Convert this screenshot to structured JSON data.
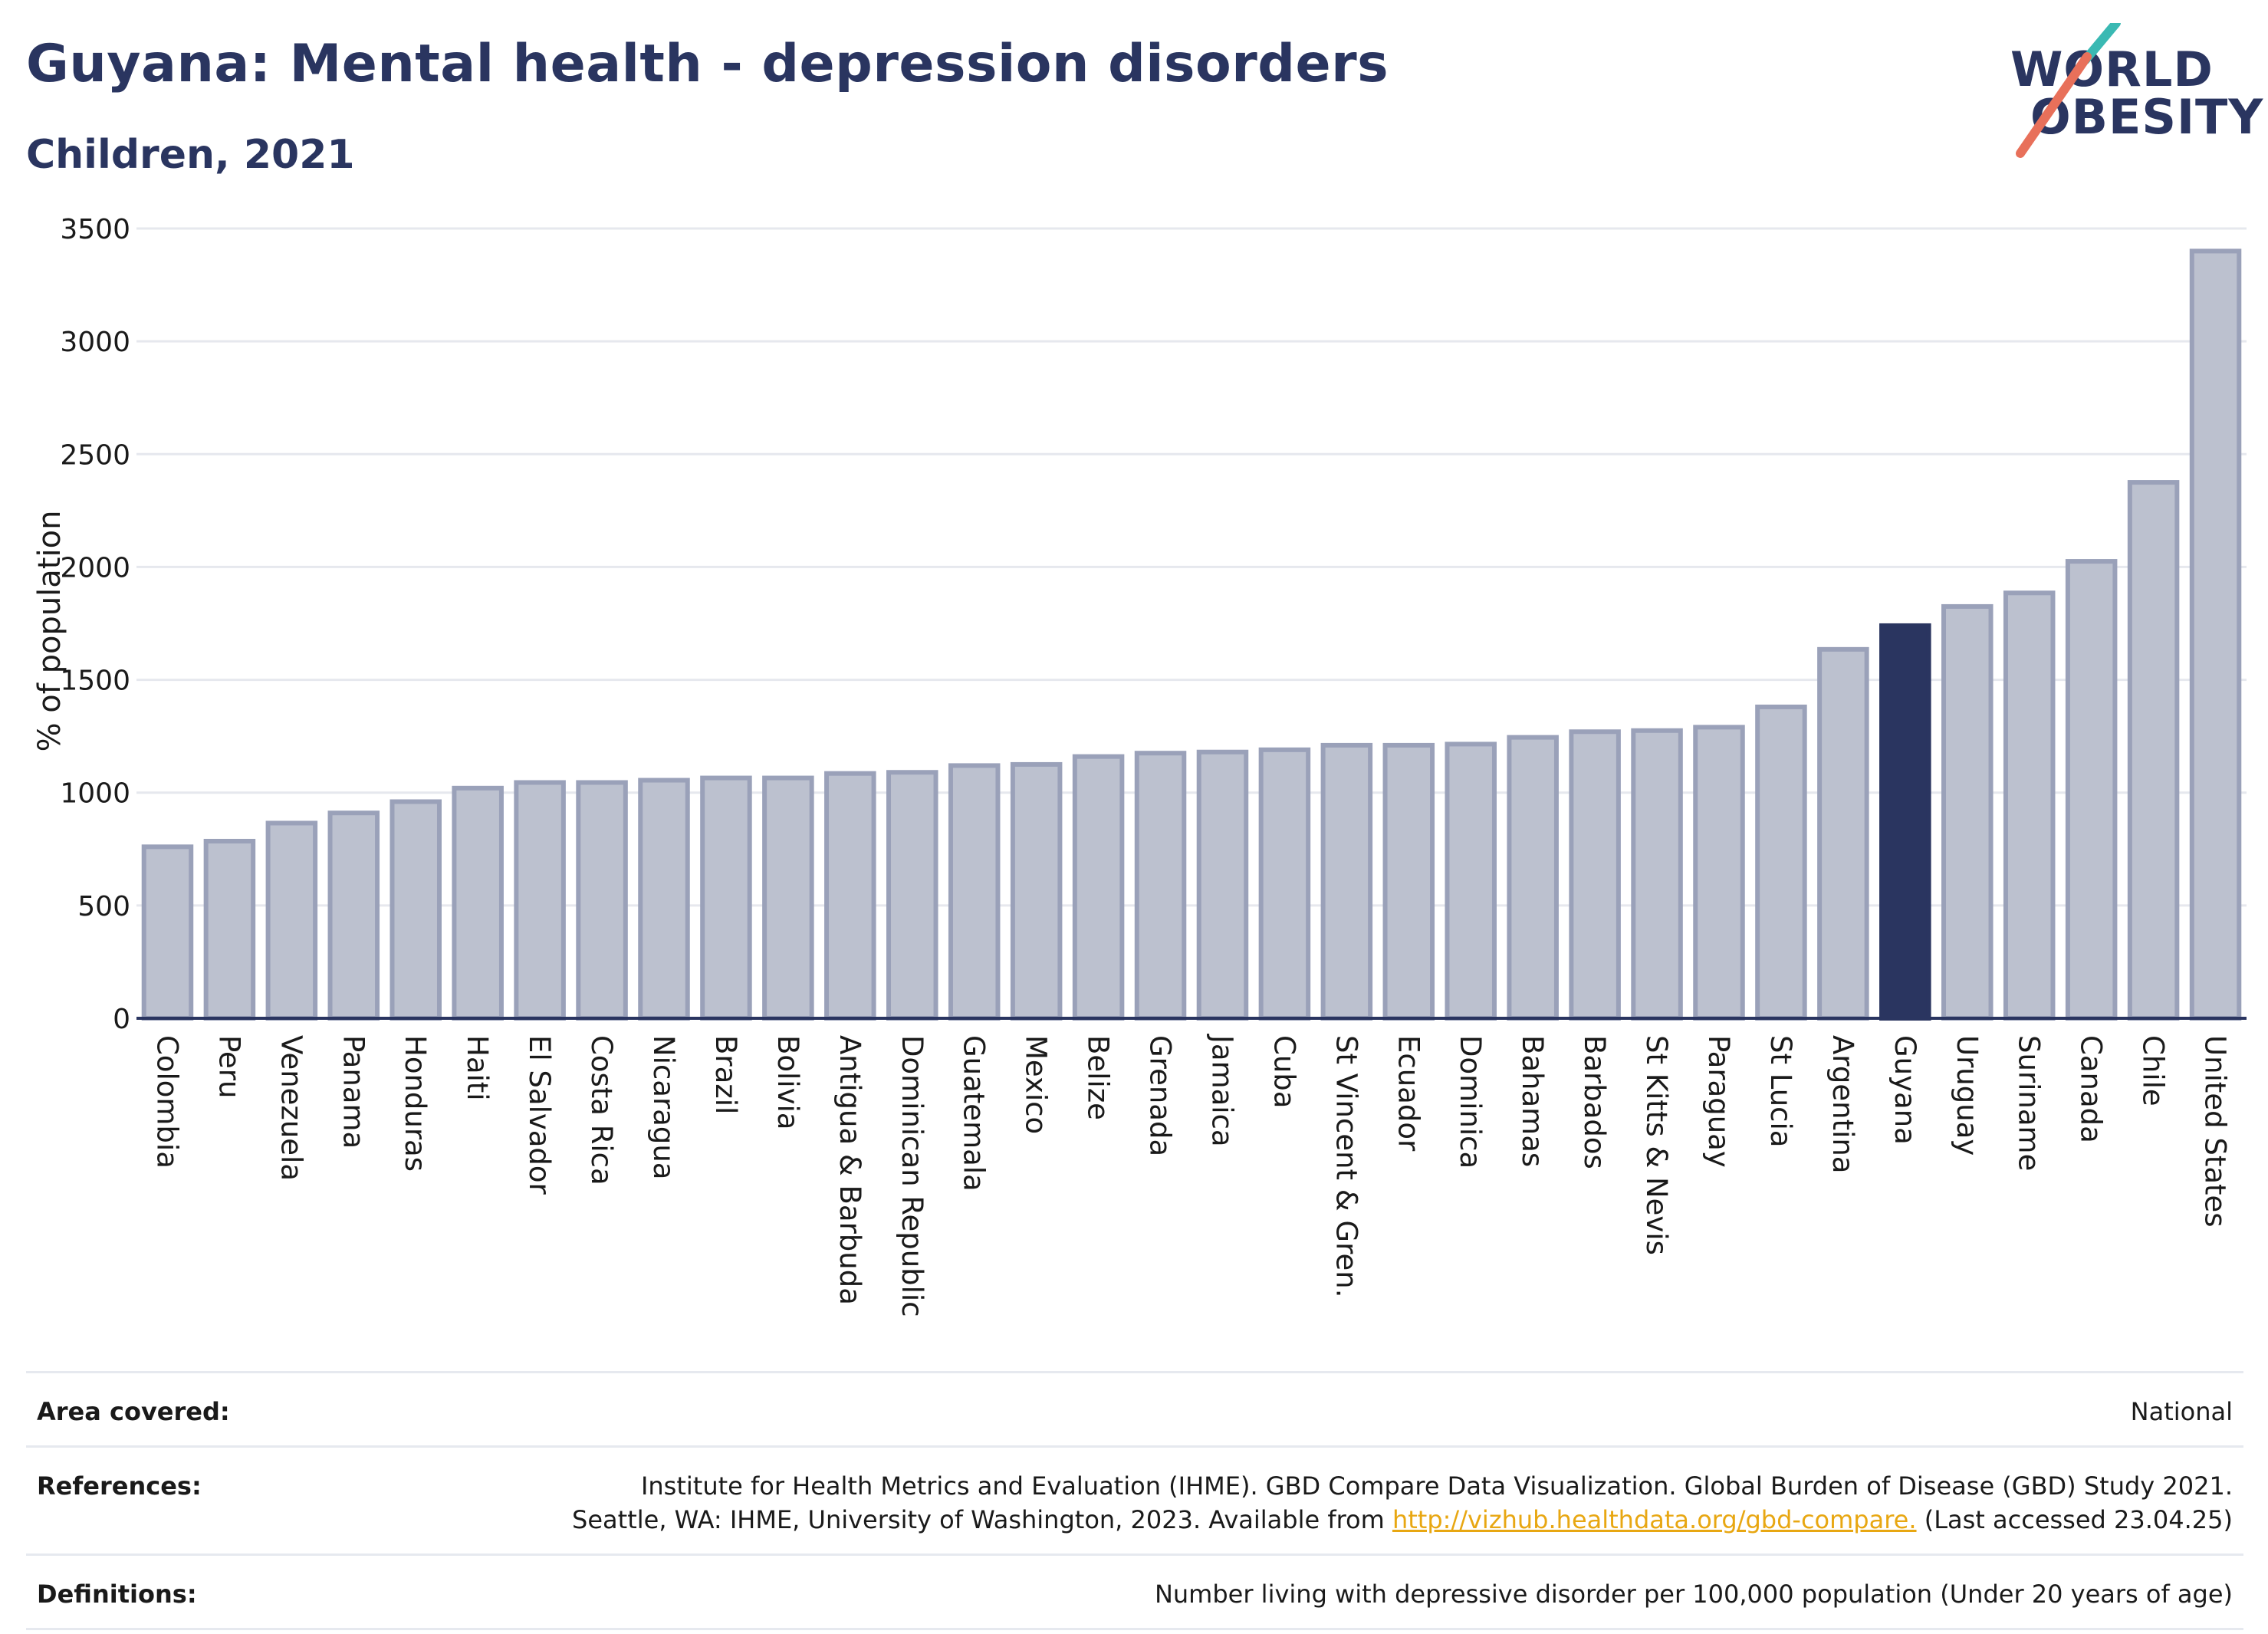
{
  "header": {
    "title": "Guyana: Mental health - depression disorders",
    "subtitle": "Children, 2021"
  },
  "logo": {
    "line1": "WORLD",
    "line2": "OBESITY",
    "accent_colors": [
      "#3ab9b3",
      "#e8705a"
    ]
  },
  "colors": {
    "bar_default": "#bcc1cf",
    "bar_border": "#9aa1b9",
    "bar_highlight": "#2a3560",
    "axis": "#2a3560",
    "grid": "#e6e8ee"
  },
  "chart_data": {
    "type": "bar",
    "title": "Guyana: Mental health - depression disorders",
    "subtitle": "Children, 2021",
    "ylabel": "% of population",
    "xlabel": "",
    "ylim": [
      0,
      3500
    ],
    "yticks": [
      0,
      500,
      1000,
      1500,
      2000,
      2500,
      3000,
      3500
    ],
    "grid": true,
    "highlight": "Guyana",
    "categories": [
      "Colombia",
      "Peru",
      "Venezuela",
      "Panama",
      "Honduras",
      "Haiti",
      "El Salvador",
      "Costa Rica",
      "Nicaragua",
      "Brazil",
      "Bolivia",
      "Antigua & Barbuda",
      "Dominican Republic",
      "Guatemala",
      "Mexico",
      "Belize",
      "Grenada",
      "Jamaica",
      "Cuba",
      "St Vincent & Gren.",
      "Ecuador",
      "Dominica",
      "Bahamas",
      "Barbados",
      "St Kitts & Nevis",
      "Paraguay",
      "St Lucia",
      "Argentina",
      "Guyana",
      "Uruguay",
      "Suriname",
      "Canada",
      "Chile",
      "United States"
    ],
    "values": [
      760,
      785,
      865,
      910,
      960,
      1020,
      1045,
      1045,
      1055,
      1065,
      1065,
      1085,
      1090,
      1120,
      1125,
      1160,
      1175,
      1180,
      1190,
      1210,
      1210,
      1215,
      1245,
      1270,
      1275,
      1290,
      1380,
      1635,
      1740,
      1825,
      1885,
      2025,
      2375,
      3400
    ]
  },
  "footer": {
    "area_label": "Area covered:",
    "area_value": "National",
    "references_label": "References:",
    "references_line1": "Institute for Health Metrics and Evaluation (IHME). GBD Compare Data Visualization. Global Burden of Disease (GBD) Study 2021.",
    "references_line2_pre": "Seattle, WA: IHME, University of Washington, 2023. Available from ",
    "references_link": "http://vizhub.healthdata.org/gbd-compare.",
    "references_line2_post": " (Last accessed 23.04.25)",
    "definitions_label": "Definitions:",
    "definitions_value": "Number living with depressive disorder per 100,000 population (Under 20 years of age)"
  }
}
